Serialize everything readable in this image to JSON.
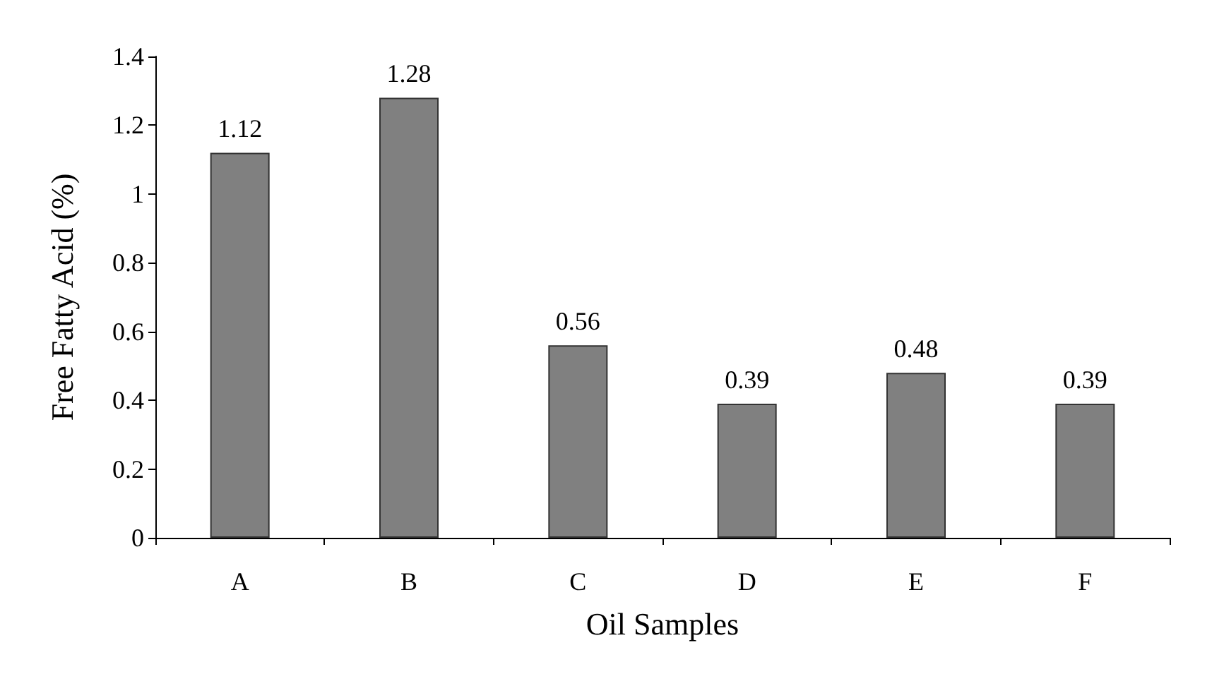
{
  "chart_data": {
    "type": "bar",
    "xlabel": "Oil Samples",
    "ylabel": "Free Fatty Acid (%)",
    "categories": [
      "A",
      "B",
      "C",
      "D",
      "E",
      "F"
    ],
    "values": [
      1.12,
      1.28,
      0.56,
      0.39,
      0.48,
      0.39
    ],
    "color": "#808080",
    "ylim": [
      0,
      1.4
    ],
    "yticks": [
      0,
      0.2,
      0.4,
      0.6,
      0.8,
      1,
      1.2,
      1.4
    ],
    "data_labels": true,
    "grid": false
  }
}
